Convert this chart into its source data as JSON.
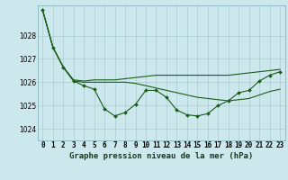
{
  "bg_color": "#cce8ec",
  "grid_color": "#aaccd4",
  "line_color": "#1a5c1a",
  "marker_color": "#1a5c1a",
  "xlabel": "Graphe pression niveau de la mer (hPa)",
  "xlabel_fontsize": 6.5,
  "tick_fontsize": 5.5,
  "ylim": [
    1023.5,
    1029.3
  ],
  "xlim": [
    -0.5,
    23.5
  ],
  "yticks": [
    1024,
    1025,
    1026,
    1027,
    1028
  ],
  "xtick_labels": [
    "0",
    "1",
    "2",
    "3",
    "4",
    "5",
    "6",
    "7",
    "8",
    "9",
    "10",
    "11",
    "12",
    "13",
    "14",
    "15",
    "16",
    "17",
    "18",
    "19",
    "20",
    "21",
    "22",
    "23"
  ],
  "series1": [
    1029.1,
    1027.5,
    1026.65,
    1026.05,
    1025.85,
    1025.7,
    1024.85,
    1024.55,
    1024.7,
    1025.05,
    1025.65,
    1025.65,
    1025.35,
    1024.8,
    1024.6,
    1024.55,
    1024.65,
    1025.0,
    1025.2,
    1025.55,
    1025.65,
    1026.05,
    1026.3,
    1026.45
  ],
  "series2": [
    1029.1,
    1027.5,
    1026.65,
    1026.05,
    1026.0,
    1026.0,
    1026.0,
    1026.0,
    1026.0,
    1025.95,
    1025.85,
    1025.75,
    1025.65,
    1025.55,
    1025.45,
    1025.35,
    1025.3,
    1025.25,
    1025.2,
    1025.25,
    1025.3,
    1025.45,
    1025.6,
    1025.7
  ],
  "series3": [
    1029.1,
    1027.5,
    1026.65,
    1026.1,
    1026.05,
    1026.1,
    1026.1,
    1026.1,
    1026.15,
    1026.2,
    1026.25,
    1026.3,
    1026.3,
    1026.3,
    1026.3,
    1026.3,
    1026.3,
    1026.3,
    1026.3,
    1026.35,
    1026.4,
    1026.45,
    1026.5,
    1026.55
  ],
  "figsize": [
    3.2,
    2.0
  ],
  "dpi": 100
}
